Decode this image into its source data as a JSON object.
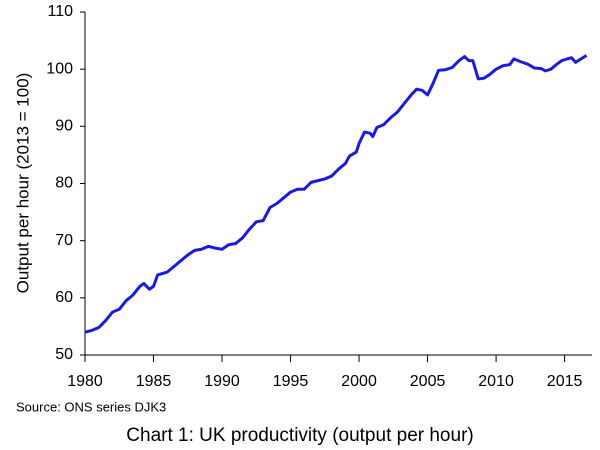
{
  "chart_data": {
    "type": "line",
    "title": "Chart 1: UK productivity (output per hour)",
    "source": "Source: ONS series DJK3",
    "y_label": "Output per hour (2013 = 100)",
    "xlim": [
      1980,
      2017
    ],
    "xticks": [
      1980,
      1985,
      1990,
      1995,
      2000,
      2005,
      2010,
      2015
    ],
    "ylim": [
      50,
      110
    ],
    "yticks": [
      50,
      60,
      70,
      80,
      90,
      100,
      110
    ],
    "grid": false,
    "series": [
      {
        "name": "Output per hour",
        "color": "#1a1ae0",
        "x": [
          1980.0,
          1980.5,
          1981.0,
          1981.5,
          1982.0,
          1982.5,
          1983.0,
          1983.5,
          1984.0,
          1984.3,
          1984.7,
          1985.0,
          1985.3,
          1986.0,
          1986.5,
          1987.0,
          1987.5,
          1988.0,
          1988.5,
          1989.0,
          1989.5,
          1990.0,
          1990.5,
          1991.0,
          1991.5,
          1992.0,
          1992.5,
          1993.0,
          1993.5,
          1994.0,
          1994.5,
          1995.0,
          1995.5,
          1996.0,
          1996.5,
          1997.0,
          1997.5,
          1998.0,
          1998.5,
          1999.0,
          1999.3,
          1999.8,
          2000.0,
          2000.4,
          2000.8,
          2001.0,
          2001.3,
          2001.8,
          2002.3,
          2002.8,
          2003.3,
          2003.8,
          2004.2,
          2004.6,
          2005.0,
          2005.4,
          2005.8,
          2006.3,
          2006.8,
          2007.3,
          2007.7,
          2008.0,
          2008.3,
          2008.7,
          2009.1,
          2009.5,
          2010.0,
          2010.5,
          2011.0,
          2011.3,
          2011.8,
          2012.3,
          2012.8,
          2013.3,
          2013.6,
          2014.0,
          2014.4,
          2014.8,
          2015.2,
          2015.5,
          2015.8,
          2016.2,
          2016.6
        ],
        "values": [
          54.0,
          54.3,
          54.8,
          56.0,
          57.5,
          58.0,
          59.5,
          60.5,
          62.0,
          62.5,
          61.5,
          62.0,
          64.0,
          64.5,
          65.5,
          66.5,
          67.5,
          68.3,
          68.5,
          69.0,
          68.7,
          68.5,
          69.3,
          69.5,
          70.5,
          72.0,
          73.3,
          73.5,
          75.8,
          76.5,
          77.5,
          78.5,
          79.0,
          79.0,
          80.2,
          80.5,
          80.8,
          81.3,
          82.5,
          83.5,
          84.8,
          85.5,
          87.0,
          89.0,
          88.8,
          88.2,
          89.8,
          90.3,
          91.5,
          92.5,
          94.0,
          95.5,
          96.5,
          96.3,
          95.5,
          97.5,
          99.8,
          99.9,
          100.3,
          101.5,
          102.2,
          101.5,
          101.5,
          98.3,
          98.4,
          99.0,
          100.0,
          100.6,
          100.8,
          101.8,
          101.3,
          100.9,
          100.2,
          100.1,
          99.7,
          100.0,
          100.8,
          101.5,
          101.8,
          102.0,
          101.2,
          101.8,
          102.4
        ]
      }
    ]
  }
}
